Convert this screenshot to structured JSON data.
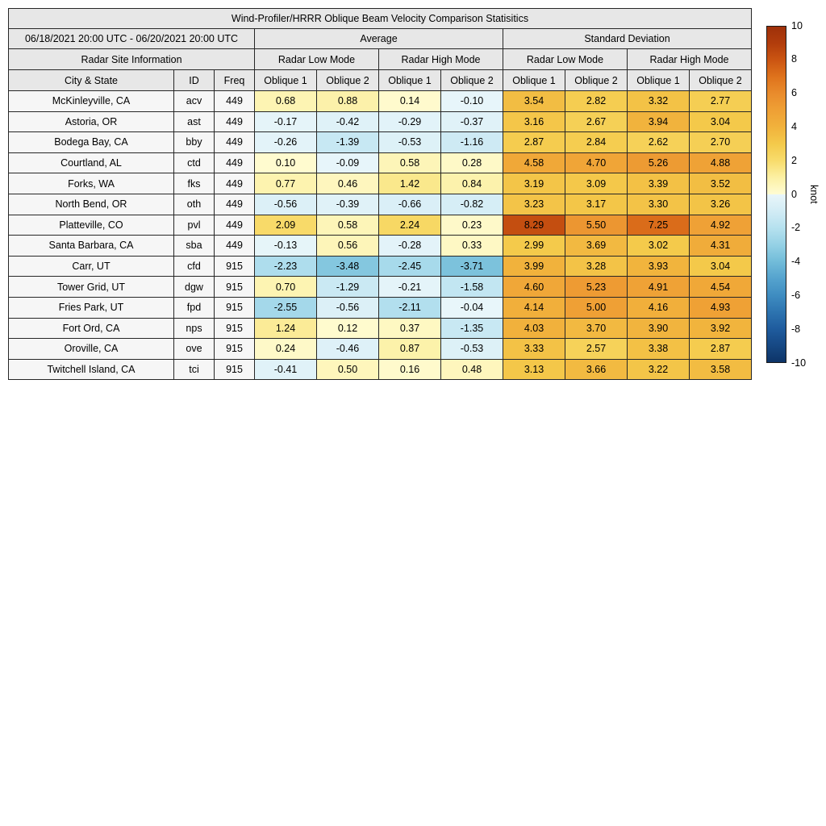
{
  "title": "Wind-Profiler/HRRR Oblique Beam Velocity Comparison Statisitics",
  "header": {
    "date_range": "06/18/2021 20:00 UTC - 06/20/2021 20:00 UTC",
    "group_average": "Average",
    "group_std": "Standard Deviation",
    "site_info": "Radar Site Information",
    "mode_labels": [
      "Radar Low Mode",
      "Radar High Mode",
      "Radar Low Mode",
      "Radar High Mode"
    ],
    "columns": [
      "City & State",
      "ID",
      "Freq",
      "Oblique 1",
      "Oblique 2",
      "Oblique 1",
      "Oblique 2",
      "Oblique 1",
      "Oblique 2",
      "Oblique 1",
      "Oblique 2"
    ]
  },
  "colorbar": {
    "label": "knot",
    "min": -10,
    "max": 10,
    "ticks": [
      "10",
      "8",
      "6",
      "4",
      "2",
      "0",
      "-2",
      "-4",
      "-6",
      "-8",
      "-10"
    ],
    "positive_colors": [
      "#fffcd4",
      "#fcf0a4",
      "#f8dc6c",
      "#f4ca4b",
      "#f1b23c",
      "#efa035",
      "#e98c2c",
      "#df731c",
      "#cb5512",
      "#b23d0c",
      "#9e300a"
    ],
    "negative_colors": [
      "#e9f6fa",
      "#d2ecf5",
      "#b6e1ef",
      "#95d1e5",
      "#72bcd9",
      "#55a3ce",
      "#3f8dc1",
      "#2d74b0",
      "#1f5c9e",
      "#164884",
      "#0d3467"
    ]
  },
  "chart_data": {
    "type": "heatmap-table",
    "title": "Wind-Profiler/HRRR Oblique Beam Velocity Comparison Statisitics",
    "period": "06/18/2021 20:00 UTC - 06/20/2021 20:00 UTC",
    "column_groups": [
      {
        "label": "Radar Site Information",
        "columns": [
          "City & State",
          "ID",
          "Freq"
        ]
      },
      {
        "label": "Average",
        "subgroups": [
          {
            "label": "Radar Low Mode",
            "columns": [
              "Oblique 1",
              "Oblique 2"
            ]
          },
          {
            "label": "Radar High Mode",
            "columns": [
              "Oblique 1",
              "Oblique 2"
            ]
          }
        ]
      },
      {
        "label": "Standard Deviation",
        "subgroups": [
          {
            "label": "Radar Low Mode",
            "columns": [
              "Oblique 1",
              "Oblique 2"
            ]
          },
          {
            "label": "Radar High Mode",
            "columns": [
              "Oblique 1",
              "Oblique 2"
            ]
          }
        ]
      }
    ],
    "value_columns_start": 3,
    "rows": [
      [
        "McKinleyville, CA",
        "acv",
        "449",
        "0.68",
        "0.88",
        "0.14",
        "-0.10",
        "3.54",
        "2.82",
        "3.32",
        "2.77"
      ],
      [
        "Astoria, OR",
        "ast",
        "449",
        "-0.17",
        "-0.42",
        "-0.29",
        "-0.37",
        "3.16",
        "2.67",
        "3.94",
        "3.04"
      ],
      [
        "Bodega Bay, CA",
        "bby",
        "449",
        "-0.26",
        "-1.39",
        "-0.53",
        "-1.16",
        "2.87",
        "2.84",
        "2.62",
        "2.70"
      ],
      [
        "Courtland, AL",
        "ctd",
        "449",
        "0.10",
        "-0.09",
        "0.58",
        "0.28",
        "4.58",
        "4.70",
        "5.26",
        "4.88"
      ],
      [
        "Forks, WA",
        "fks",
        "449",
        "0.77",
        "0.46",
        "1.42",
        "0.84",
        "3.19",
        "3.09",
        "3.39",
        "3.52"
      ],
      [
        "North Bend, OR",
        "oth",
        "449",
        "-0.56",
        "-0.39",
        "-0.66",
        "-0.82",
        "3.23",
        "3.17",
        "3.30",
        "3.26"
      ],
      [
        "Platteville, CO",
        "pvl",
        "449",
        "2.09",
        "0.58",
        "2.24",
        "0.23",
        "8.29",
        "5.50",
        "7.25",
        "4.92"
      ],
      [
        "Santa Barbara, CA",
        "sba",
        "449",
        "-0.13",
        "0.56",
        "-0.28",
        "0.33",
        "2.99",
        "3.69",
        "3.02",
        "4.31"
      ],
      [
        "Carr, UT",
        "cfd",
        "915",
        "-2.23",
        "-3.48",
        "-2.45",
        "-3.71",
        "3.99",
        "3.28",
        "3.93",
        "3.04"
      ],
      [
        "Tower Grid, UT",
        "dgw",
        "915",
        "0.70",
        "-1.29",
        "-0.21",
        "-1.58",
        "4.60",
        "5.23",
        "4.91",
        "4.54"
      ],
      [
        "Fries Park, UT",
        "fpd",
        "915",
        "-2.55",
        "-0.56",
        "-2.11",
        "-0.04",
        "4.14",
        "5.00",
        "4.16",
        "4.93"
      ],
      [
        "Fort Ord, CA",
        "nps",
        "915",
        "1.24",
        "0.12",
        "0.37",
        "-1.35",
        "4.03",
        "3.70",
        "3.90",
        "3.92"
      ],
      [
        "Oroville, CA",
        "ove",
        "915",
        "0.24",
        "-0.46",
        "0.87",
        "-0.53",
        "3.33",
        "2.57",
        "3.38",
        "2.87"
      ],
      [
        "Twitchell Island, CA",
        "tci",
        "915",
        "-0.41",
        "0.50",
        "0.16",
        "0.48",
        "3.13",
        "3.66",
        "3.22",
        "3.58"
      ]
    ],
    "colorbar": {
      "label": "knot",
      "range": [
        -10,
        10
      ],
      "ticks": [
        10,
        8,
        6,
        4,
        2,
        0,
        -2,
        -4,
        -6,
        -8,
        -10
      ]
    }
  }
}
